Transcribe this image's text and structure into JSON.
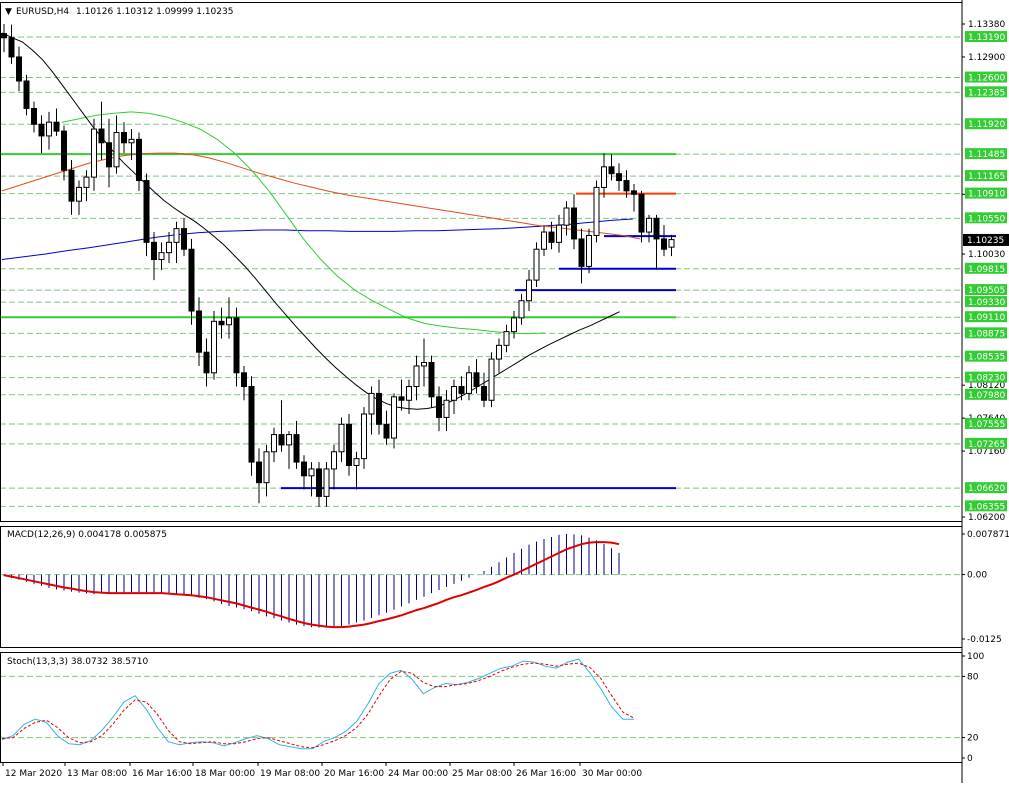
{
  "main_panel": {
    "header": {
      "marker": "▼",
      "symbol_tf": "EURUSD,H4",
      "ohlc": "1.10126 1.10312 1.09999 1.10235"
    },
    "price_scale": {
      "min": 1.062,
      "max": 1.1338,
      "plain_labels": [
        "1.13380",
        "1.12900",
        "1.10900",
        "1.10030",
        "1.08120",
        "1.07640",
        "1.07160",
        "1.06200"
      ],
      "boxed_labels": [
        "1.13190",
        "1.12600",
        "1.12385",
        "1.11920",
        "1.11485",
        "1.11165",
        "1.10910",
        "1.10550",
        "1.09815",
        "1.09505",
        "1.09330",
        "1.09110",
        "1.08875",
        "1.08535",
        "1.08230",
        "1.07980",
        "1.07555",
        "1.07265",
        "1.06620",
        "1.06355"
      ],
      "current_price": "1.10235"
    },
    "levels": [
      {
        "price": 1.11485,
        "color": "#32cd32",
        "x_from": 0,
        "x_to": 676
      },
      {
        "price": 1.0911,
        "color": "#32cd32",
        "x_from": 0,
        "x_to": 676
      },
      {
        "price": 1.1091,
        "color": "#ff3b00",
        "x_from": 576,
        "x_to": 676
      },
      {
        "price": 1.1029,
        "color": "#0000cd",
        "x_from": 604,
        "x_to": 676
      },
      {
        "price": 1.09815,
        "color": "#0000cd",
        "x_from": 559,
        "x_to": 676
      },
      {
        "price": 1.09505,
        "color": "#0000cd",
        "x_from": 515,
        "x_to": 676
      },
      {
        "price": 1.0662,
        "color": "#0000cd",
        "x_from": 281,
        "x_to": 676
      }
    ]
  },
  "macd_panel": {
    "label": "MACD(12,26,9) 0.004178 0.005875",
    "scale_labels": [
      "0.007871",
      "0.00",
      "-0.0125"
    ]
  },
  "stoch_panel": {
    "label": "Stoch(13,3,3) 38.0732 38.5710",
    "scale_labels": [
      "100",
      "80",
      "20",
      "0"
    ]
  },
  "time_axis": {
    "labels": [
      "12 Mar 2020",
      "13 Mar 08:00",
      "16 Mar 16:00",
      "18 Mar 00:00",
      "19 Mar 08:00",
      "20 Mar 16:00",
      "24 Mar 00:00",
      "25 Mar 08:00",
      "26 Mar 16:00",
      "30 Mar 00:00"
    ]
  },
  "colors": {
    "bull_candle": "#ffffff",
    "bear_candle": "#000000",
    "ma_slow": "#0000cd",
    "ma_mid": "#e34c1a",
    "ma_fast": "#000000",
    "ma_green": "#32cd32",
    "macd_signal": "#e00000",
    "stoch_main": "#34b3e6",
    "stoch_signal": "#e00000",
    "grid": "#7ec87e"
  },
  "chart_data": {
    "type": "candlestick",
    "symbol": "EURUSD",
    "timeframe": "H4",
    "ylim": [
      1.062,
      1.1338
    ],
    "candles": [
      {
        "o": 1.1324,
        "h": 1.1338,
        "l": 1.1297,
        "c": 1.1318
      },
      {
        "o": 1.1318,
        "h": 1.1337,
        "l": 1.128,
        "c": 1.129
      },
      {
        "o": 1.129,
        "h": 1.1305,
        "l": 1.124,
        "c": 1.1255
      },
      {
        "o": 1.1255,
        "h": 1.1264,
        "l": 1.1205,
        "c": 1.1215
      },
      {
        "o": 1.1215,
        "h": 1.1225,
        "l": 1.118,
        "c": 1.1192
      },
      {
        "o": 1.1192,
        "h": 1.1205,
        "l": 1.115,
        "c": 1.1175
      },
      {
        "o": 1.1175,
        "h": 1.121,
        "l": 1.1155,
        "c": 1.1195
      },
      {
        "o": 1.1195,
        "h": 1.1215,
        "l": 1.1175,
        "c": 1.1182
      },
      {
        "o": 1.1182,
        "h": 1.119,
        "l": 1.111,
        "c": 1.1125
      },
      {
        "o": 1.1125,
        "h": 1.114,
        "l": 1.106,
        "c": 1.108
      },
      {
        "o": 1.108,
        "h": 1.111,
        "l": 1.106,
        "c": 1.11
      },
      {
        "o": 1.11,
        "h": 1.1125,
        "l": 1.108,
        "c": 1.1115
      },
      {
        "o": 1.1115,
        "h": 1.12,
        "l": 1.1095,
        "c": 1.1185
      },
      {
        "o": 1.1185,
        "h": 1.1225,
        "l": 1.114,
        "c": 1.1165
      },
      {
        "o": 1.1165,
        "h": 1.12,
        "l": 1.11,
        "c": 1.113
      },
      {
        "o": 1.113,
        "h": 1.1205,
        "l": 1.112,
        "c": 1.118
      },
      {
        "o": 1.118,
        "h": 1.1195,
        "l": 1.115,
        "c": 1.1165
      },
      {
        "o": 1.1165,
        "h": 1.1185,
        "l": 1.114,
        "c": 1.117
      },
      {
        "o": 1.117,
        "h": 1.118,
        "l": 1.1095,
        "c": 1.111
      },
      {
        "o": 1.111,
        "h": 1.112,
        "l": 1.1,
        "c": 1.102
      },
      {
        "o": 1.102,
        "h": 1.1035,
        "l": 1.0965,
        "c": 1.0995
      },
      {
        "o": 1.0995,
        "h": 1.102,
        "l": 1.098,
        "c": 1.1005
      },
      {
        "o": 1.1005,
        "h": 1.1035,
        "l": 1.099,
        "c": 1.102
      },
      {
        "o": 1.102,
        "h": 1.105,
        "l": 1.099,
        "c": 1.104
      },
      {
        "o": 1.104,
        "h": 1.1055,
        "l": 1.1,
        "c": 1.101
      },
      {
        "o": 1.101,
        "h": 1.1025,
        "l": 1.09,
        "c": 1.092
      },
      {
        "o": 1.092,
        "h": 1.094,
        "l": 1.084,
        "c": 1.086
      },
      {
        "o": 1.086,
        "h": 1.088,
        "l": 1.081,
        "c": 1.083
      },
      {
        "o": 1.083,
        "h": 1.092,
        "l": 1.082,
        "c": 1.0905
      },
      {
        "o": 1.0905,
        "h": 1.0925,
        "l": 1.088,
        "c": 1.09
      },
      {
        "o": 1.09,
        "h": 1.094,
        "l": 1.088,
        "c": 1.091
      },
      {
        "o": 1.091,
        "h": 1.0925,
        "l": 1.081,
        "c": 1.083
      },
      {
        "o": 1.083,
        "h": 1.084,
        "l": 1.079,
        "c": 1.081
      },
      {
        "o": 1.081,
        "h": 1.0825,
        "l": 1.068,
        "c": 1.07
      },
      {
        "o": 1.07,
        "h": 1.072,
        "l": 1.064,
        "c": 1.067
      },
      {
        "o": 1.067,
        "h": 1.0725,
        "l": 1.065,
        "c": 1.0715
      },
      {
        "o": 1.0715,
        "h": 1.075,
        "l": 1.07,
        "c": 1.074
      },
      {
        "o": 1.074,
        "h": 1.079,
        "l": 1.0715,
        "c": 1.0725
      },
      {
        "o": 1.0725,
        "h": 1.0745,
        "l": 1.069,
        "c": 1.074
      },
      {
        "o": 1.074,
        "h": 1.076,
        "l": 1.069,
        "c": 1.07
      },
      {
        "o": 1.07,
        "h": 1.071,
        "l": 1.066,
        "c": 1.068
      },
      {
        "o": 1.068,
        "h": 1.07,
        "l": 1.065,
        "c": 1.069
      },
      {
        "o": 1.069,
        "h": 1.07,
        "l": 1.0635,
        "c": 1.065
      },
      {
        "o": 1.065,
        "h": 1.07,
        "l": 1.0635,
        "c": 1.069
      },
      {
        "o": 1.069,
        "h": 1.0725,
        "l": 1.066,
        "c": 1.0715
      },
      {
        "o": 1.0715,
        "h": 1.0765,
        "l": 1.07,
        "c": 1.0755
      },
      {
        "o": 1.0755,
        "h": 1.077,
        "l": 1.068,
        "c": 1.0695
      },
      {
        "o": 1.0695,
        "h": 1.0715,
        "l": 1.066,
        "c": 1.0705
      },
      {
        "o": 1.0705,
        "h": 1.078,
        "l": 1.069,
        "c": 1.077
      },
      {
        "o": 1.077,
        "h": 1.081,
        "l": 1.074,
        "c": 1.08
      },
      {
        "o": 1.08,
        "h": 1.082,
        "l": 1.074,
        "c": 1.0755
      },
      {
        "o": 1.0755,
        "h": 1.0775,
        "l": 1.0725,
        "c": 1.0735
      },
      {
        "o": 1.0735,
        "h": 1.08,
        "l": 1.072,
        "c": 1.0795
      },
      {
        "o": 1.0795,
        "h": 1.082,
        "l": 1.0775,
        "c": 1.079
      },
      {
        "o": 1.079,
        "h": 1.082,
        "l": 1.077,
        "c": 1.081
      },
      {
        "o": 1.081,
        "h": 1.0855,
        "l": 1.079,
        "c": 1.084
      },
      {
        "o": 1.084,
        "h": 1.088,
        "l": 1.081,
        "c": 1.0845
      },
      {
        "o": 1.0845,
        "h": 1.0855,
        "l": 1.078,
        "c": 1.0795
      },
      {
        "o": 1.0795,
        "h": 1.081,
        "l": 1.0745,
        "c": 1.0765
      },
      {
        "o": 1.0765,
        "h": 1.0805,
        "l": 1.0745,
        "c": 1.079
      },
      {
        "o": 1.079,
        "h": 1.082,
        "l": 1.077,
        "c": 1.081
      },
      {
        "o": 1.081,
        "h": 1.0825,
        "l": 1.079,
        "c": 1.08
      },
      {
        "o": 1.08,
        "h": 1.084,
        "l": 1.079,
        "c": 1.083
      },
      {
        "o": 1.083,
        "h": 1.085,
        "l": 1.08,
        "c": 1.081
      },
      {
        "o": 1.081,
        "h": 1.083,
        "l": 1.078,
        "c": 1.079
      },
      {
        "o": 1.079,
        "h": 1.086,
        "l": 1.078,
        "c": 1.085
      },
      {
        "o": 1.085,
        "h": 1.088,
        "l": 1.083,
        "c": 1.087
      },
      {
        "o": 1.087,
        "h": 1.09,
        "l": 1.086,
        "c": 1.089
      },
      {
        "o": 1.089,
        "h": 1.092,
        "l": 1.088,
        "c": 1.091
      },
      {
        "o": 1.091,
        "h": 1.0945,
        "l": 1.09,
        "c": 1.0935
      },
      {
        "o": 1.0935,
        "h": 1.098,
        "l": 1.092,
        "c": 1.0965
      },
      {
        "o": 1.0965,
        "h": 1.102,
        "l": 1.0955,
        "c": 1.101
      },
      {
        "o": 1.101,
        "h": 1.1045,
        "l": 1.1,
        "c": 1.1035
      },
      {
        "o": 1.1035,
        "h": 1.105,
        "l": 1.101,
        "c": 1.102
      },
      {
        "o": 1.102,
        "h": 1.106,
        "l": 1.1005,
        "c": 1.1045
      },
      {
        "o": 1.1045,
        "h": 1.108,
        "l": 1.103,
        "c": 1.107
      },
      {
        "o": 1.107,
        "h": 1.109,
        "l": 1.101,
        "c": 1.1025
      },
      {
        "o": 1.1025,
        "h": 1.104,
        "l": 1.096,
        "c": 1.0985
      },
      {
        "o": 1.0985,
        "h": 1.104,
        "l": 1.0975,
        "c": 1.103
      },
      {
        "o": 1.103,
        "h": 1.111,
        "l": 1.102,
        "c": 1.11
      },
      {
        "o": 1.11,
        "h": 1.115,
        "l": 1.1085,
        "c": 1.113
      },
      {
        "o": 1.113,
        "h": 1.1148,
        "l": 1.111,
        "c": 1.112
      },
      {
        "o": 1.112,
        "h": 1.1135,
        "l": 1.1095,
        "c": 1.111
      },
      {
        "o": 1.111,
        "h": 1.1125,
        "l": 1.1085,
        "c": 1.1095
      },
      {
        "o": 1.1095,
        "h": 1.1105,
        "l": 1.1065,
        "c": 1.109
      },
      {
        "o": 1.109,
        "h": 1.1095,
        "l": 1.102,
        "c": 1.1035
      },
      {
        "o": 1.1035,
        "h": 1.106,
        "l": 1.102,
        "c": 1.1055
      },
      {
        "o": 1.1055,
        "h": 1.106,
        "l": 1.098,
        "c": 1.1025
      },
      {
        "o": 1.1025,
        "h": 1.1045,
        "l": 1.1,
        "c": 1.101
      },
      {
        "o": 1.1013,
        "h": 1.1031,
        "l": 1.1,
        "c": 1.1024
      }
    ],
    "ma_fast": [
      1.1325,
      1.1318,
      1.1312,
      1.13,
      1.1286,
      1.1268,
      1.1248,
      1.1228,
      1.1208,
      1.1188,
      1.117,
      1.1152,
      1.1136,
      1.1122,
      1.1108,
      1.1094,
      1.1081,
      1.107,
      1.106,
      1.1051,
      1.104,
      1.1028,
      1.1015,
      1.1,
      1.0985,
      1.0968,
      1.095,
      1.0932,
      1.0915,
      1.0898,
      1.0882,
      1.0866,
      1.0851,
      1.0837,
      1.0824,
      1.0812,
      1.0801,
      1.0792,
      1.0785,
      1.078,
      1.0778,
      1.0777,
      1.0778,
      1.0781,
      1.0786,
      1.0793,
      1.0801,
      1.081,
      1.0819,
      1.0828,
      1.0837,
      1.0846,
      1.0855,
      1.0863,
      1.0871,
      1.0878,
      1.0885,
      1.0892,
      1.0898,
      1.0905,
      1.0912,
      1.0919
    ],
    "ma_mid": [
      1.1095,
      1.1103,
      1.1111,
      1.1119,
      1.1127,
      1.1135,
      1.1141,
      1.1146,
      1.1149,
      1.115,
      1.115,
      1.1148,
      1.1143,
      1.1136,
      1.1128,
      1.112,
      1.1113,
      1.1106,
      1.11,
      1.1094,
      1.1089,
      1.1085,
      1.1081,
      1.1077,
      1.1073,
      1.1069,
      1.1065,
      1.1061,
      1.1057,
      1.1053,
      1.1049,
      1.1045,
      1.1042,
      1.1039,
      1.1036,
      1.1033,
      1.103,
      1.1025
    ],
    "ma_slow": [
      1.0995,
      1.0999,
      1.1003,
      1.1008,
      1.1012,
      1.1017,
      1.1022,
      1.1027,
      1.1031,
      1.1034,
      1.1036,
      1.1037,
      1.1038,
      1.1038,
      1.1037,
      1.1037,
      1.1036,
      1.1036,
      1.1036,
      1.1037,
      1.1037,
      1.1038,
      1.1039,
      1.104,
      1.1042,
      1.1044,
      1.1046,
      1.1049,
      1.1052,
      1.1054
    ],
    "ma_green": [
      1.1195,
      1.12,
      1.1205,
      1.1208,
      1.121,
      1.1208,
      1.1203,
      1.1195,
      1.1185,
      1.117,
      1.115,
      1.1125,
      1.1095,
      1.106,
      1.1025,
      1.0995,
      1.097,
      1.095,
      1.0935,
      1.0922,
      1.091,
      1.0902,
      1.0898,
      1.0895,
      1.0893,
      1.089,
      1.0888,
      1.0887,
      1.0888
    ],
    "macd": {
      "ylim": [
        -0.0125,
        0.007871
      ],
      "histogram": [
        -0.0003,
        -0.0007,
        -0.001,
        -0.0014,
        -0.0018,
        -0.0022,
        -0.0026,
        -0.0029,
        -0.0031,
        -0.0033,
        -0.0035,
        -0.0037,
        -0.0038,
        -0.0037,
        -0.0036,
        -0.0035,
        -0.0035,
        -0.0034,
        -0.0034,
        -0.0035,
        -0.0036,
        -0.0037,
        -0.0038,
        -0.0039,
        -0.004,
        -0.0042,
        -0.0045,
        -0.0048,
        -0.0052,
        -0.0057,
        -0.0061,
        -0.0064,
        -0.0067,
        -0.0071,
        -0.0076,
        -0.0081,
        -0.0085,
        -0.0089,
        -0.0093,
        -0.0097,
        -0.01,
        -0.0102,
        -0.0103,
        -0.0103,
        -0.0102,
        -0.01,
        -0.0097,
        -0.0093,
        -0.0089,
        -0.0084,
        -0.0079,
        -0.0074,
        -0.0068,
        -0.0062,
        -0.0056,
        -0.0049,
        -0.0043,
        -0.0036,
        -0.003,
        -0.0024,
        -0.0018,
        -0.0012,
        -0.0006,
        0.0,
        0.0007,
        0.0015,
        0.0024,
        0.0033,
        0.0042,
        0.005,
        0.0058,
        0.0064,
        0.0069,
        0.0073,
        0.0077,
        0.0079,
        0.0078,
        0.0076,
        0.0072,
        0.0066,
        0.0059,
        0.0051,
        0.0042
      ],
      "signal": [
        -0.0001,
        -0.0004,
        -0.0007,
        -0.001,
        -0.0013,
        -0.0016,
        -0.0019,
        -0.0022,
        -0.0025,
        -0.0027,
        -0.003,
        -0.0032,
        -0.0034,
        -0.0035,
        -0.0036,
        -0.0036,
        -0.0036,
        -0.0036,
        -0.0036,
        -0.0036,
        -0.0036,
        -0.0036,
        -0.0037,
        -0.0038,
        -0.0039,
        -0.004,
        -0.0042,
        -0.0044,
        -0.0047,
        -0.005,
        -0.0053,
        -0.0056,
        -0.006,
        -0.0064,
        -0.0068,
        -0.0072,
        -0.0077,
        -0.0081,
        -0.0086,
        -0.009,
        -0.0094,
        -0.0097,
        -0.0099,
        -0.0101,
        -0.0102,
        -0.0102,
        -0.0101,
        -0.0099,
        -0.0097,
        -0.0094,
        -0.009,
        -0.0087,
        -0.0083,
        -0.0079,
        -0.0074,
        -0.0069,
        -0.0065,
        -0.006,
        -0.0055,
        -0.0049,
        -0.0044,
        -0.004,
        -0.0035,
        -0.003,
        -0.0024,
        -0.0019,
        -0.0013,
        -0.0006,
        0.0,
        0.0007,
        0.0014,
        0.0021,
        0.0028,
        0.0035,
        0.0042,
        0.0049,
        0.0054,
        0.0059,
        0.0062,
        0.0063,
        0.0063,
        0.0062,
        0.0059
      ]
    },
    "stochastic": {
      "ylim": [
        0,
        100
      ],
      "main": [
        18,
        22,
        33,
        38,
        35,
        22,
        14,
        13,
        17,
        27,
        40,
        55,
        61,
        48,
        30,
        16,
        13,
        15,
        16,
        15,
        12,
        15,
        19,
        22,
        19,
        13,
        11,
        9,
        9,
        16,
        20,
        26,
        36,
        53,
        73,
        83,
        86,
        77,
        63,
        69,
        73,
        72,
        74,
        78,
        83,
        88,
        90,
        95,
        94,
        90,
        88,
        94,
        97,
        84,
        68,
        50,
        38,
        38
      ],
      "signal": [
        19,
        20,
        29,
        35,
        37,
        30,
        20,
        15,
        16,
        22,
        33,
        47,
        57,
        55,
        43,
        27,
        16,
        14,
        15,
        16,
        14,
        14,
        16,
        19,
        20,
        17,
        14,
        11,
        10,
        13,
        17,
        22,
        30,
        43,
        61,
        77,
        85,
        83,
        74,
        70,
        70,
        72,
        73,
        76,
        80,
        85,
        89,
        92,
        93,
        92,
        90,
        92,
        93,
        89,
        78,
        61,
        45,
        39
      ]
    }
  }
}
